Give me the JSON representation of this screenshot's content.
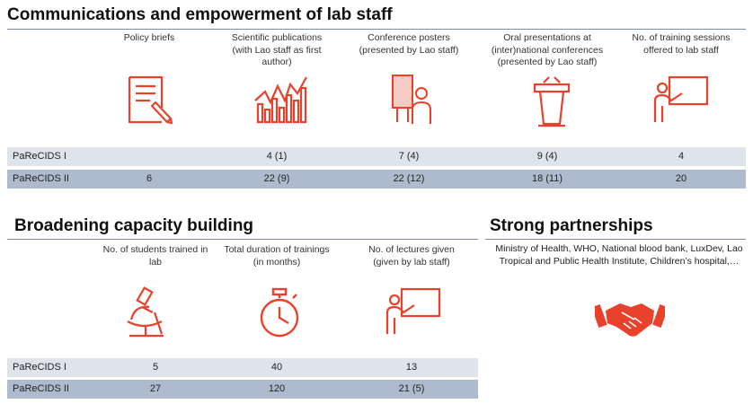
{
  "sections": {
    "comms": {
      "title": "Communications and empowerment of lab staff",
      "columns": [
        {
          "label": "Policy briefs",
          "icon": "document-icon"
        },
        {
          "label": "Scientific publications (with Lao staff as first author)",
          "icon": "bar-chart-icon"
        },
        {
          "label": "Conference posters (presented by Lao staff)",
          "icon": "poster-presenter-icon"
        },
        {
          "label": "Oral presentations at (inter)national conferences (presented by Lao staff)",
          "icon": "podium-icon"
        },
        {
          "label": "No. of training sessions offered to lab staff",
          "icon": "teacher-board-icon"
        }
      ],
      "rows": [
        {
          "label": "PaReCIDS I",
          "values": [
            "",
            "4 (1)",
            "7 (4)",
            "9 (4)",
            "4"
          ]
        },
        {
          "label": "PaReCIDS II",
          "values": [
            "6",
            "22 (9)",
            "22 (12)",
            "18 (11)",
            "20"
          ]
        }
      ]
    },
    "capacity": {
      "title": "Broadening capacity building",
      "columns": [
        {
          "label": "No. of students trained in lab",
          "icon": "microscope-icon"
        },
        {
          "label": "Total duration of trainings (in months)",
          "icon": "stopwatch-icon"
        },
        {
          "label": "No. of lectures given (given by lab staff)",
          "icon": "teacher-board-icon"
        }
      ],
      "rows": [
        {
          "label": "PaReCIDS I",
          "values": [
            "5",
            "40",
            "13"
          ]
        },
        {
          "label": "PaReCIDS II",
          "values": [
            "27",
            "120",
            "21 (5)"
          ]
        }
      ]
    },
    "partnerships": {
      "title": "Strong partnerships",
      "text": "Ministry of Health, WHO, National blood bank, LuxDev, Lao Tropical and Public Health Institute, Children’s hospital,…",
      "icon": "handshake-icon"
    }
  },
  "colors": {
    "accent": "#e8412c",
    "row1": "#dfe4ec",
    "row2": "#aebace",
    "rule": "#7d8aa6"
  }
}
